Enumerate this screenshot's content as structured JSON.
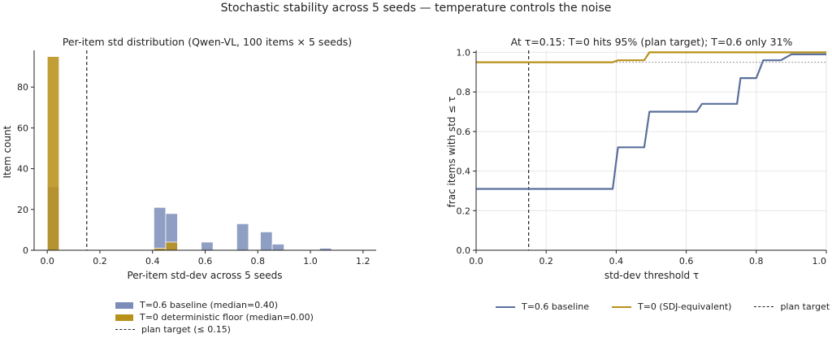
{
  "suptitle": "Stochastic stability across 5 seeds — temperature controls the noise",
  "colors": {
    "baseline": "#7b8db8",
    "deterministic": "#b8911a",
    "baseline_line": "#5a6f9c",
    "grid": "#e6e6e6"
  },
  "chart_data": [
    {
      "type": "bar",
      "title": "Per-item std distribution (Qwen-VL, 100 items × 5 seeds)",
      "xlabel": "Per-item std-dev across 5 seeds",
      "ylabel": "Item count",
      "xlim": [
        -0.05,
        1.25
      ],
      "ylim": [
        0,
        98
      ],
      "xticks": [
        "0.0",
        "0.2",
        "0.4",
        "0.6",
        "0.8",
        "1.0",
        "1.2"
      ],
      "yticks": [
        "0",
        "20",
        "40",
        "60",
        "80"
      ],
      "bin_width": 0.045,
      "series": [
        {
          "name": "T=0.6 baseline (median=0.40)",
          "bins": [
            {
              "x": 0.0,
              "count": 31
            },
            {
              "x": 0.405,
              "count": 21
            },
            {
              "x": 0.45,
              "count": 18
            },
            {
              "x": 0.585,
              "count": 4
            },
            {
              "x": 0.72,
              "count": 13
            },
            {
              "x": 0.81,
              "count": 9
            },
            {
              "x": 0.855,
              "count": 3
            },
            {
              "x": 1.035,
              "count": 1
            }
          ]
        },
        {
          "name": "T=0 deterministic floor (median=0.00)",
          "bins": [
            {
              "x": 0.0,
              "count": 95
            },
            {
              "x": 0.405,
              "count": 1
            },
            {
              "x": 0.45,
              "count": 4
            }
          ]
        }
      ],
      "reference_line": {
        "name": "plan target (≤ 0.15)",
        "x": 0.15,
        "style": "dashed"
      },
      "grid": false,
      "legend_placement": "below"
    },
    {
      "type": "line",
      "title": "At τ=0.15: T=0 hits 95% (plan target); T=0.6 only 31%",
      "xlabel": "std-dev threshold τ",
      "ylabel": "frac items with std ≤ τ",
      "xlim": [
        0.0,
        1.0
      ],
      "ylim": [
        0.0,
        1.01
      ],
      "xticks": [
        "0.0",
        "0.2",
        "0.4",
        "0.6",
        "0.8",
        "1.0"
      ],
      "yticks": [
        "0.0",
        "0.2",
        "0.4",
        "0.6",
        "0.8",
        "1.0"
      ],
      "series": [
        {
          "name": "T=0.6 baseline",
          "x": [
            0.0,
            0.39,
            0.405,
            0.44,
            0.48,
            0.495,
            0.58,
            0.6,
            0.63,
            0.645,
            0.72,
            0.745,
            0.755,
            0.77,
            0.8,
            0.82,
            0.87,
            0.9,
            1.0
          ],
          "y": [
            0.31,
            0.31,
            0.52,
            0.52,
            0.52,
            0.7,
            0.7,
            0.7,
            0.7,
            0.74,
            0.74,
            0.74,
            0.87,
            0.87,
            0.87,
            0.96,
            0.96,
            0.99,
            0.99
          ]
        },
        {
          "name": "T=0 (SDJ-equivalent)",
          "x": [
            0.0,
            0.39,
            0.405,
            0.44,
            0.48,
            0.495,
            1.0
          ],
          "y": [
            0.95,
            0.95,
            0.96,
            0.96,
            0.96,
            1.0,
            1.0
          ]
        }
      ],
      "reference_vline": {
        "name": "plan target",
        "x": 0.15,
        "style": "dashed"
      },
      "reference_hline": {
        "y": 0.95,
        "style": "dotted",
        "from_x": 0.4
      },
      "grid": true,
      "legend_placement": "below"
    }
  ]
}
